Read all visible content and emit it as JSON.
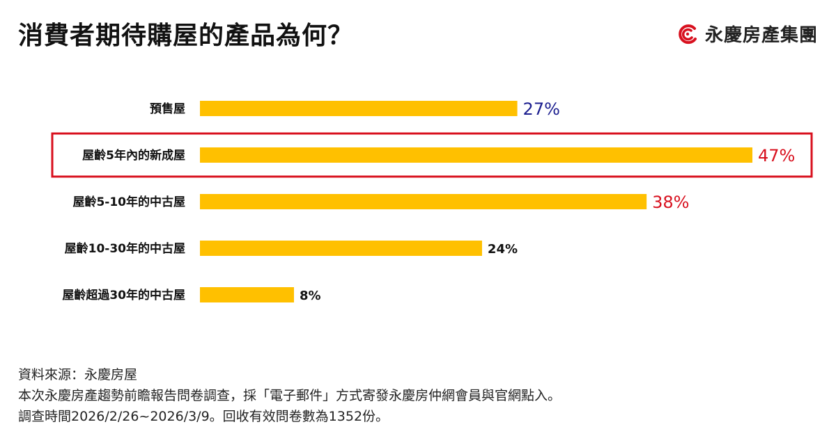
{
  "title": "消費者期待購屋的產品為何？",
  "brand": {
    "name": "永慶房產集團",
    "logo_icon": "spiral-c-logo",
    "color": "#d8101e"
  },
  "chart_data": {
    "type": "bar",
    "orientation": "horizontal",
    "categories": [
      "預售屋",
      "屋齡5年內的新成屋",
      "屋齡5-10年的中古屋",
      "屋齡10-30年的中古屋",
      "屋齡超過30年的中古屋"
    ],
    "values": [
      27,
      47,
      38,
      24,
      8
    ],
    "value_labels": [
      "27%",
      "47%",
      "38%",
      "24%",
      "8%"
    ],
    "unit": "%",
    "bar_color": "#ffc000",
    "label_colors": [
      "#1b1e8f",
      "#d8101e",
      "#d8101e",
      "#111111",
      "#111111"
    ],
    "highlighted_category": "屋齡5年內的新成屋",
    "highlight_color": "#d8101e",
    "xlim": [
      0,
      47
    ],
    "grid": false,
    "legend": "none"
  },
  "footer": {
    "source": "資料來源：永慶房屋",
    "note1": "本次永慶房產趨勢前瞻報告問卷調查，採「電子郵件」方式寄發永慶房仲網會員與官網點入。",
    "note2": "調查時間2026/2/26~2026/3/9。回收有效問卷數為1352份。"
  }
}
